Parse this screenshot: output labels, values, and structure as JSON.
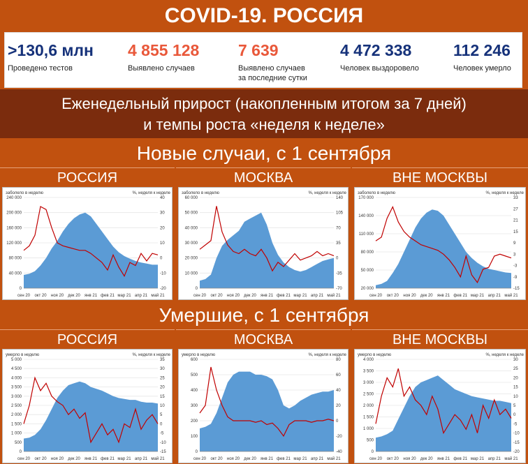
{
  "header": {
    "title": "COVID-19. РОССИЯ"
  },
  "stats": [
    {
      "value": ">130,6 млн",
      "label": "Проведено тестов",
      "color": "#16327a"
    },
    {
      "value": "4 855 128",
      "label": "Выявлено случаев",
      "color": "#e9583a"
    },
    {
      "value": "7 639",
      "label": "Выявлено случаев\nза последние сутки",
      "color": "#e9583a"
    },
    {
      "value": "4 472 338",
      "label": "Человек выздоровело",
      "color": "#16327a"
    },
    {
      "value": "112 246",
      "label": "Человек умерло",
      "color": "#16327a"
    }
  ],
  "banner": {
    "line1": "Еженедельный прирост (накопленным итогом за 7 дней)",
    "line2": "и темпы роста «неделя к неделе»"
  },
  "sections": {
    "cases": "Новые случаи, с 1 сентября",
    "deaths": "Умершие, с 1 сентября"
  },
  "regions": [
    "РОССИЯ",
    "МОСКВА",
    "ВНЕ МОСКВЫ"
  ],
  "colors": {
    "area": "#5b9bd5",
    "line": "#c00000",
    "accent": "#c1510f",
    "dark": "#7b2c0d"
  },
  "chart_data": [
    {
      "type": "area",
      "group": "cases",
      "region": "РОССИЯ",
      "ylabel": "заболело в неделю",
      "y2label": "%, неделя к неделе",
      "yticks": [
        "240 000",
        "200 000",
        "160 000",
        "120 000",
        "80 000",
        "40 000",
        "0"
      ],
      "ylim": [
        0,
        240000
      ],
      "y2ticks": [
        "40",
        "30",
        "20",
        "10",
        "0",
        "-10",
        "-20"
      ],
      "y2lim": [
        -20,
        40
      ],
      "xticks": [
        "сен 20",
        "окт 20",
        "ноя 20",
        "дек 20",
        "янв 21",
        "фев 21",
        "мар 21",
        "апр 21",
        "май 21"
      ],
      "area_values": [
        35000,
        38000,
        45000,
        60000,
        80000,
        105000,
        125000,
        150000,
        170000,
        185000,
        195000,
        200000,
        190000,
        170000,
        150000,
        130000,
        110000,
        95000,
        85000,
        78000,
        72000,
        68000,
        65000,
        62000,
        62000
      ],
      "line_values": [
        5,
        8,
        15,
        34,
        32,
        20,
        10,
        8,
        7,
        6,
        5,
        5,
        3,
        0,
        -3,
        -8,
        2,
        -6,
        -12,
        -3,
        -5,
        3,
        -2,
        3,
        2
      ]
    },
    {
      "type": "area",
      "group": "cases",
      "region": "МОСКВА",
      "ylabel": "заболело в неделю",
      "y2label": "%, неделя к неделе",
      "yticks": [
        "60 000",
        "50 000",
        "40 000",
        "30 000",
        "20 000",
        "10 000",
        "0"
      ],
      "ylim": [
        0,
        60000
      ],
      "y2ticks": [
        "140",
        "105",
        "70",
        "35",
        "0",
        "-35",
        "-70"
      ],
      "y2lim": [
        -70,
        140
      ],
      "xticks": [
        "сен 20",
        "окт 20",
        "ноя 20",
        "дек 20",
        "янв 21",
        "фев 21",
        "мар 21",
        "апр 21",
        "май 21"
      ],
      "area_values": [
        5000,
        6000,
        9000,
        20000,
        28000,
        32000,
        35000,
        38000,
        44000,
        46000,
        48000,
        50000,
        42000,
        30000,
        22000,
        17000,
        14000,
        12000,
        11000,
        12000,
        14000,
        16000,
        18000,
        19000,
        20000
      ],
      "line_values": [
        20,
        30,
        40,
        120,
        60,
        30,
        15,
        10,
        20,
        10,
        5,
        20,
        0,
        -30,
        -10,
        -20,
        -5,
        10,
        -5,
        0,
        5,
        15,
        5,
        10,
        5
      ]
    },
    {
      "type": "area",
      "group": "cases",
      "region": "ВНЕ МОСКВЫ",
      "ylabel": "заболело в неделю",
      "y2label": "%, неделя к неделе",
      "yticks": [
        "170 000",
        "140 000",
        "110 000",
        "80 000",
        "50 000",
        "20 000"
      ],
      "ylim": [
        20000,
        170000
      ],
      "y2ticks": [
        "33",
        "27",
        "21",
        "15",
        "9",
        "3",
        "-3",
        "-9",
        "-15"
      ],
      "y2lim": [
        -15,
        33
      ],
      "xticks": [
        "сен 20",
        "окт 20",
        "ноя 20",
        "дек 20",
        "янв 21",
        "фев 21",
        "мар 21",
        "апр 21",
        "май 21"
      ],
      "area_values": [
        25000,
        27000,
        32000,
        45000,
        60000,
        80000,
        100000,
        120000,
        135000,
        145000,
        150000,
        148000,
        140000,
        125000,
        110000,
        95000,
        80000,
        70000,
        62000,
        56000,
        52000,
        50000,
        48000,
        46000,
        45000
      ],
      "line_values": [
        10,
        12,
        22,
        28,
        20,
        15,
        12,
        10,
        8,
        7,
        6,
        5,
        3,
        0,
        -4,
        -9,
        2,
        -8,
        -12,
        -5,
        -4,
        2,
        3,
        2,
        1
      ]
    },
    {
      "type": "area",
      "group": "deaths",
      "region": "РОССИЯ",
      "ylabel": "умерло в неделю",
      "y2label": "%, неделя к неделе",
      "yticks": [
        "5 000",
        "4 500",
        "4 000",
        "3 500",
        "3 000",
        "2 500",
        "2 000",
        "1 500",
        "1 000",
        "500",
        "0"
      ],
      "ylim": [
        0,
        5000
      ],
      "y2ticks": [
        "35",
        "30",
        "25",
        "20",
        "15",
        "10",
        "5",
        "0",
        "-5",
        "-10",
        "-15"
      ],
      "y2lim": [
        -15,
        35
      ],
      "xticks": [
        "сен 20",
        "окт 20",
        "ноя 20",
        "дек 20",
        "янв 21",
        "фев 21",
        "мар 21",
        "апр 21",
        "май 21"
      ],
      "area_values": [
        700,
        750,
        900,
        1200,
        1700,
        2300,
        2900,
        3300,
        3600,
        3700,
        3800,
        3700,
        3500,
        3400,
        3300,
        3150,
        3000,
        2900,
        2850,
        2800,
        2800,
        2700,
        2650,
        2650,
        2600
      ],
      "line_values": [
        0,
        10,
        25,
        18,
        22,
        15,
        12,
        10,
        5,
        8,
        3,
        6,
        -10,
        -5,
        0,
        -6,
        -3,
        -10,
        0,
        -2,
        8,
        -3,
        2,
        5,
        0
      ]
    },
    {
      "type": "area",
      "group": "deaths",
      "region": "МОСКВА",
      "ylabel": "умерло в неделю",
      "y2label": "%, неделя к неделе",
      "yticks": [
        "600",
        "500",
        "400",
        "300",
        "200",
        "100",
        "0"
      ],
      "ylim": [
        0,
        600
      ],
      "y2ticks": [
        "80",
        "60",
        "40",
        "20",
        "0",
        "-20",
        "-40"
      ],
      "y2lim": [
        -40,
        80
      ],
      "xticks": [
        "сен 20",
        "окт 20",
        "ноя 20",
        "дек 20",
        "янв 21",
        "фев 21",
        "мар 21",
        "апр 21",
        "май 21"
      ],
      "area_values": [
        150,
        160,
        180,
        250,
        350,
        450,
        500,
        520,
        520,
        520,
        500,
        500,
        490,
        470,
        400,
        300,
        280,
        300,
        330,
        350,
        370,
        380,
        390,
        390,
        400
      ],
      "line_values": [
        10,
        20,
        70,
        40,
        20,
        5,
        0,
        0,
        0,
        0,
        -2,
        0,
        -5,
        -3,
        -10,
        -20,
        -5,
        0,
        0,
        0,
        -2,
        0,
        0,
        2,
        0
      ]
    },
    {
      "type": "area",
      "group": "deaths",
      "region": "ВНЕ МОСКВЫ",
      "ylabel": "умерло в неделю",
      "y2label": "%, неделя к неделе",
      "yticks": [
        "4 000",
        "3 500",
        "3 000",
        "2 500",
        "2 000",
        "1 500",
        "1 000",
        "500",
        "0"
      ],
      "ylim": [
        0,
        4000
      ],
      "y2ticks": [
        "30",
        "25",
        "20",
        "15",
        "10",
        "5",
        "0",
        "-5",
        "-10",
        "-15",
        "-20"
      ],
      "y2lim": [
        -20,
        30
      ],
      "xticks": [
        "сен 20",
        "окт 20",
        "ноя 20",
        "дек 20",
        "янв 21",
        "фев 21",
        "мар 21",
        "апр 21",
        "май 21"
      ],
      "area_values": [
        600,
        650,
        750,
        900,
        1400,
        1900,
        2400,
        2800,
        3000,
        3100,
        3200,
        3300,
        3100,
        2900,
        2700,
        2600,
        2500,
        2400,
        2350,
        2300,
        2250,
        2200,
        2200,
        2150,
        2100
      ],
      "line_values": [
        -5,
        10,
        20,
        15,
        25,
        10,
        15,
        8,
        5,
        0,
        10,
        3,
        -10,
        -5,
        0,
        -3,
        -8,
        0,
        -10,
        5,
        -2,
        8,
        0,
        3,
        -2
      ]
    }
  ]
}
